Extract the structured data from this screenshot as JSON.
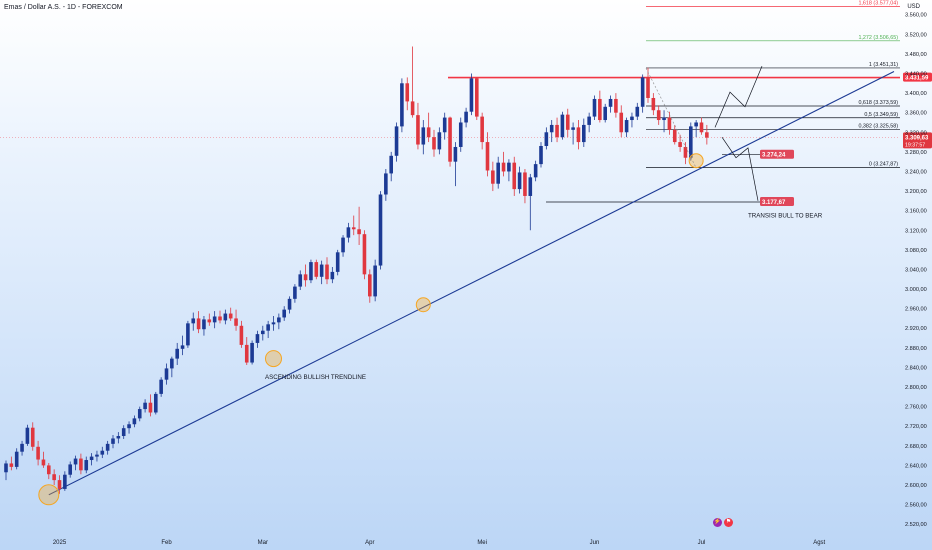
{
  "header": {
    "symbol_title": "Emas / Dollar A.S. - 1D - FOREXCOM",
    "currency": "USD"
  },
  "icons": {
    "flash": "lightning-icon",
    "flag": "flag-icon"
  },
  "colors": {
    "up": "#1c3a94",
    "down": "#e0373f",
    "trend": "#1c3a94",
    "resistance": "#f23645",
    "circle": "#f5a623"
  },
  "chart_data": {
    "type": "candlestick",
    "yaxis": {
      "ticks": [
        2520,
        2560,
        2600,
        2640,
        2680,
        2720,
        2760,
        2800,
        2840,
        2880,
        2920,
        2960,
        3000,
        3040,
        3080,
        3120,
        3160,
        3200,
        3240,
        3280,
        3320,
        3360,
        3400,
        3440,
        3480,
        3520,
        3560
      ],
      "tick_labels": [
        "2.520,00",
        "2.560,00",
        "2.600,00",
        "2.640,00",
        "2.680,00",
        "2.720,00",
        "2.760,00",
        "2.800,00",
        "2.840,00",
        "2.880,00",
        "2.920,00",
        "2.960,00",
        "3.000,00",
        "3.040,00",
        "3.080,00",
        "3.120,00",
        "3.160,00",
        "3.200,00",
        "3.240,00",
        "3.280,00",
        "3.320,00",
        "3.360,00",
        "3.400,00",
        "3.440,00",
        "3.480,00",
        "3.520,00",
        "3.560,00"
      ],
      "ylim": [
        2500,
        3590
      ]
    },
    "xaxis": {
      "labels": [
        {
          "label": "2025",
          "bar": 10
        },
        {
          "label": "Feb",
          "bar": 30
        },
        {
          "label": "Mar",
          "bar": 48
        },
        {
          "label": "Apr",
          "bar": 68
        },
        {
          "label": "Mei",
          "bar": 89
        },
        {
          "label": "Jun",
          "bar": 110
        },
        {
          "label": "Jul",
          "bar": 130
        },
        {
          "label": "Agst",
          "bar": 152
        }
      ],
      "bars_visible": 163
    },
    "price_labels": {
      "resistance": "3.431,59",
      "current": "3.309,63",
      "countdown": "19:37:57",
      "target_up_box": "3.274,24",
      "target_down_box": "3.177,67"
    },
    "fib_levels": [
      {
        "label": "1,618 (3.577,04)",
        "price": 3577.04,
        "color": "#f23645"
      },
      {
        "label": "1,272 (3.506,65)",
        "price": 3506.65,
        "color": "#4caf50"
      },
      {
        "label": "1 (3.451,31)",
        "price": 3451.31,
        "color": "#131722"
      },
      {
        "label": "0,618 (3.373,59)",
        "price": 3373.59,
        "color": "#131722"
      },
      {
        "label": "0,5 (3.349,59)",
        "price": 3349.59,
        "color": "#131722"
      },
      {
        "label": "0,382 (3.325,58)",
        "price": 3325.58,
        "color": "#131722"
      },
      {
        "label": "0 (3.247,87)",
        "price": 3247.87,
        "color": "#131722"
      }
    ],
    "annotations": {
      "trendline_label": "ASCENDING BULLISH TRENDLINE",
      "transition_label": "TRANSISI BULL TO BEAR"
    },
    "resistance_price": 3431.59,
    "current_price": 3309.63,
    "target_up_price": 3274.24,
    "target_down_price": 3177.67,
    "candles": [
      [
        2626,
        2650,
        2610,
        2644
      ],
      [
        2644,
        2658,
        2630,
        2637
      ],
      [
        2637,
        2675,
        2632,
        2668
      ],
      [
        2668,
        2690,
        2660,
        2684
      ],
      [
        2684,
        2723,
        2680,
        2717
      ],
      [
        2717,
        2728,
        2670,
        2678
      ],
      [
        2678,
        2690,
        2640,
        2652
      ],
      [
        2652,
        2668,
        2635,
        2640
      ],
      [
        2640,
        2645,
        2612,
        2622
      ],
      [
        2622,
        2632,
        2600,
        2610
      ],
      [
        2610,
        2620,
        2582,
        2592
      ],
      [
        2592,
        2628,
        2588,
        2621
      ],
      [
        2621,
        2648,
        2615,
        2642
      ],
      [
        2642,
        2660,
        2630,
        2654
      ],
      [
        2654,
        2664,
        2622,
        2630
      ],
      [
        2630,
        2658,
        2624,
        2651
      ],
      [
        2651,
        2665,
        2640,
        2658
      ],
      [
        2658,
        2670,
        2648,
        2662
      ],
      [
        2662,
        2678,
        2655,
        2670
      ],
      [
        2670,
        2690,
        2662,
        2684
      ],
      [
        2684,
        2702,
        2675,
        2695
      ],
      [
        2695,
        2708,
        2685,
        2700
      ],
      [
        2700,
        2722,
        2694,
        2716
      ],
      [
        2716,
        2730,
        2705,
        2724
      ],
      [
        2724,
        2742,
        2718,
        2736
      ],
      [
        2736,
        2760,
        2730,
        2755
      ],
      [
        2755,
        2775,
        2748,
        2768
      ],
      [
        2768,
        2785,
        2740,
        2748
      ],
      [
        2748,
        2790,
        2744,
        2786
      ],
      [
        2786,
        2820,
        2780,
        2815
      ],
      [
        2815,
        2848,
        2805,
        2838
      ],
      [
        2838,
        2862,
        2820,
        2858
      ],
      [
        2858,
        2890,
        2845,
        2878
      ],
      [
        2878,
        2905,
        2865,
        2885
      ],
      [
        2885,
        2935,
        2880,
        2930
      ],
      [
        2930,
        2952,
        2915,
        2940
      ],
      [
        2940,
        2955,
        2910,
        2918
      ],
      [
        2918,
        2945,
        2905,
        2938
      ],
      [
        2938,
        2950,
        2925,
        2932
      ],
      [
        2932,
        2955,
        2920,
        2944
      ],
      [
        2944,
        2956,
        2930,
        2936
      ],
      [
        2936,
        2958,
        2928,
        2950
      ],
      [
        2950,
        2962,
        2935,
        2940
      ],
      [
        2940,
        2958,
        2915,
        2925
      ],
      [
        2925,
        2935,
        2880,
        2886
      ],
      [
        2886,
        2902,
        2845,
        2850
      ],
      [
        2850,
        2895,
        2846,
        2890
      ],
      [
        2890,
        2915,
        2880,
        2908
      ],
      [
        2908,
        2925,
        2895,
        2915
      ],
      [
        2915,
        2935,
        2900,
        2928
      ],
      [
        2928,
        2945,
        2915,
        2932
      ],
      [
        2932,
        2950,
        2918,
        2942
      ],
      [
        2942,
        2965,
        2935,
        2958
      ],
      [
        2958,
        2985,
        2950,
        2980
      ],
      [
        2980,
        3010,
        2972,
        3005
      ],
      [
        3005,
        3038,
        2998,
        3030
      ],
      [
        3030,
        3050,
        3005,
        3018
      ],
      [
        3018,
        3060,
        3012,
        3055
      ],
      [
        3055,
        3060,
        3020,
        3025
      ],
      [
        3025,
        3058,
        3010,
        3050
      ],
      [
        3050,
        3065,
        3010,
        3020
      ],
      [
        3020,
        3045,
        3012,
        3035
      ],
      [
        3035,
        3080,
        3028,
        3075
      ],
      [
        3075,
        3110,
        3066,
        3105
      ],
      [
        3105,
        3135,
        3095,
        3126
      ],
      [
        3126,
        3150,
        3110,
        3122
      ],
      [
        3122,
        3168,
        3090,
        3112
      ],
      [
        3112,
        3120,
        3020,
        3030
      ],
      [
        3030,
        3040,
        2972,
        2985
      ],
      [
        2985,
        3060,
        2975,
        3048
      ],
      [
        3048,
        3200,
        3040,
        3193
      ],
      [
        3193,
        3245,
        3180,
        3236
      ],
      [
        3236,
        3280,
        3220,
        3272
      ],
      [
        3272,
        3340,
        3260,
        3332
      ],
      [
        3332,
        3430,
        3320,
        3420
      ],
      [
        3420,
        3432,
        3365,
        3383
      ],
      [
        3383,
        3495,
        3350,
        3355
      ],
      [
        3355,
        3380,
        3285,
        3295
      ],
      [
        3295,
        3345,
        3275,
        3330
      ],
      [
        3330,
        3360,
        3300,
        3310
      ],
      [
        3310,
        3325,
        3270,
        3285
      ],
      [
        3285,
        3330,
        3275,
        3320
      ],
      [
        3320,
        3360,
        3305,
        3350
      ],
      [
        3350,
        3352,
        3250,
        3260
      ],
      [
        3260,
        3300,
        3210,
        3290
      ],
      [
        3290,
        3350,
        3280,
        3340
      ],
      [
        3340,
        3370,
        3330,
        3362
      ],
      [
        3362,
        3440,
        3355,
        3430
      ],
      [
        3430,
        3432,
        3345,
        3352
      ],
      [
        3352,
        3360,
        3285,
        3300
      ],
      [
        3300,
        3320,
        3230,
        3242
      ],
      [
        3242,
        3260,
        3200,
        3215
      ],
      [
        3215,
        3270,
        3205,
        3258
      ],
      [
        3258,
        3280,
        3230,
        3240
      ],
      [
        3240,
        3265,
        3220,
        3258
      ],
      [
        3258,
        3270,
        3190,
        3204
      ],
      [
        3204,
        3250,
        3195,
        3238
      ],
      [
        3238,
        3245,
        3175,
        3190
      ],
      [
        3190,
        3235,
        3120,
        3228
      ],
      [
        3228,
        3262,
        3220,
        3255
      ],
      [
        3255,
        3300,
        3248,
        3292
      ],
      [
        3292,
        3330,
        3285,
        3320
      ],
      [
        3320,
        3345,
        3300,
        3335
      ],
      [
        3335,
        3350,
        3300,
        3310
      ],
      [
        3310,
        3362,
        3305,
        3356
      ],
      [
        3356,
        3368,
        3310,
        3325
      ],
      [
        3325,
        3340,
        3295,
        3330
      ],
      [
        3330,
        3345,
        3285,
        3300
      ],
      [
        3300,
        3348,
        3290,
        3335
      ],
      [
        3335,
        3360,
        3320,
        3352
      ],
      [
        3352,
        3395,
        3345,
        3388
      ],
      [
        3388,
        3405,
        3340,
        3345
      ],
      [
        3345,
        3378,
        3340,
        3372
      ],
      [
        3372,
        3395,
        3360,
        3388
      ],
      [
        3388,
        3400,
        3350,
        3360
      ],
      [
        3360,
        3375,
        3310,
        3320
      ],
      [
        3320,
        3350,
        3310,
        3345
      ],
      [
        3345,
        3360,
        3330,
        3352
      ],
      [
        3352,
        3380,
        3345,
        3372
      ],
      [
        3372,
        3438,
        3360,
        3432
      ],
      [
        3432,
        3452,
        3380,
        3390
      ],
      [
        3390,
        3400,
        3355,
        3365
      ],
      [
        3365,
        3375,
        3335,
        3345
      ],
      [
        3345,
        3365,
        3320,
        3350
      ],
      [
        3350,
        3362,
        3315,
        3325
      ],
      [
        3325,
        3335,
        3295,
        3300
      ],
      [
        3300,
        3315,
        3280,
        3290
      ],
      [
        3290,
        3300,
        3255,
        3268
      ],
      [
        3268,
        3340,
        3262,
        3332
      ],
      [
        3332,
        3345,
        3310,
        3340
      ],
      [
        3340,
        3350,
        3315,
        3320
      ],
      [
        3320,
        3335,
        3295,
        3309
      ]
    ]
  }
}
